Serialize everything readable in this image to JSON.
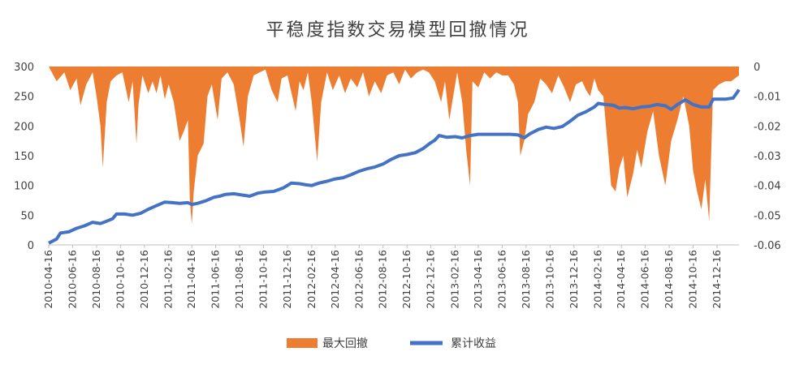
{
  "chart_data": {
    "type": "area+line",
    "title": "平稳度指数交易模型回撤情况",
    "x_ticks": [
      "2010-04-16",
      "2010-06-16",
      "2010-08-16",
      "2010-10-16",
      "2010-12-16",
      "2011-02-16",
      "2011-04-16",
      "2011-06-16",
      "2011-08-16",
      "2011-10-16",
      "2011-12-16",
      "2012-02-16",
      "2012-04-16",
      "2012-06-16",
      "2012-08-16",
      "2012-10-16",
      "2012-12-16",
      "2013-02-16",
      "2013-04-16",
      "2013-06-16",
      "2013-08-16",
      "2013-10-16",
      "2013-12-16",
      "2014-02-16",
      "2014-04-16",
      "2014-06-16",
      "2014-08-16",
      "2014-10-16",
      "2014-12-16"
    ],
    "x_range": [
      "2010-04-16",
      "2015-02-10"
    ],
    "y_left": {
      "min": 0,
      "max": 300,
      "step": 50,
      "ticks": [
        "0",
        "50",
        "100",
        "150",
        "200",
        "250",
        "300"
      ]
    },
    "y_right": {
      "min": -0.06,
      "max": 0,
      "step": 0.01,
      "ticks": [
        "-0.06",
        "-0.05",
        "-0.04",
        "-0.03",
        "-0.02",
        "-0.01",
        "0"
      ]
    },
    "grid": false,
    "legend_position": "bottom",
    "series": [
      {
        "name": "最大回撤",
        "axis": "right",
        "kind": "area",
        "color": "#ED7D31",
        "points": [
          [
            "2010-04-16",
            0
          ],
          [
            "2010-05-06",
            -0.005
          ],
          [
            "2010-05-26",
            -0.002
          ],
          [
            "2010-06-10",
            -0.008
          ],
          [
            "2010-06-26",
            -0.004
          ],
          [
            "2010-07-06",
            -0.013
          ],
          [
            "2010-07-21",
            -0.006
          ],
          [
            "2010-08-06",
            -0.002
          ],
          [
            "2010-08-16",
            -0.01
          ],
          [
            "2010-08-26",
            -0.02
          ],
          [
            "2010-09-01",
            -0.034
          ],
          [
            "2010-09-11",
            -0.012
          ],
          [
            "2010-09-21",
            -0.005
          ],
          [
            "2010-10-06",
            -0.003
          ],
          [
            "2010-10-21",
            -0.002
          ],
          [
            "2010-11-06",
            -0.012
          ],
          [
            "2010-11-16",
            -0.005
          ],
          [
            "2010-11-26",
            -0.026
          ],
          [
            "2010-12-01",
            -0.013
          ],
          [
            "2010-12-11",
            -0.003
          ],
          [
            "2010-12-26",
            -0.009
          ],
          [
            "2011-01-06",
            -0.005
          ],
          [
            "2011-01-16",
            -0.009
          ],
          [
            "2011-01-26",
            -0.003
          ],
          [
            "2011-02-06",
            -0.011
          ],
          [
            "2011-02-16",
            -0.006
          ],
          [
            "2011-03-01",
            -0.012
          ],
          [
            "2011-03-16",
            -0.025
          ],
          [
            "2011-03-26",
            -0.022
          ],
          [
            "2011-04-06",
            -0.018
          ],
          [
            "2011-04-11",
            -0.045
          ],
          [
            "2011-04-16",
            -0.053
          ],
          [
            "2011-04-21",
            -0.042
          ],
          [
            "2011-05-01",
            -0.03
          ],
          [
            "2011-05-16",
            -0.026
          ],
          [
            "2011-05-26",
            -0.01
          ],
          [
            "2011-06-06",
            -0.006
          ],
          [
            "2011-06-21",
            -0.018
          ],
          [
            "2011-07-01",
            -0.004
          ],
          [
            "2011-07-16",
            -0.002
          ],
          [
            "2011-08-01",
            -0.006
          ],
          [
            "2011-08-16",
            -0.018
          ],
          [
            "2011-08-26",
            -0.027
          ],
          [
            "2011-09-06",
            -0.01
          ],
          [
            "2011-09-21",
            -0.003
          ],
          [
            "2011-10-06",
            -0.002
          ],
          [
            "2011-10-21",
            -0.001
          ],
          [
            "2011-11-06",
            -0.008
          ],
          [
            "2011-11-21",
            -0.012
          ],
          [
            "2011-12-01",
            -0.004
          ],
          [
            "2011-12-16",
            -0.003
          ],
          [
            "2012-01-06",
            -0.015
          ],
          [
            "2012-01-16",
            -0.005
          ],
          [
            "2012-01-26",
            -0.008
          ],
          [
            "2012-02-06",
            -0.002
          ],
          [
            "2012-02-16",
            -0.012
          ],
          [
            "2012-03-01",
            -0.032
          ],
          [
            "2012-03-11",
            -0.012
          ],
          [
            "2012-03-26",
            -0.002
          ],
          [
            "2012-04-10",
            -0.008
          ],
          [
            "2012-04-26",
            -0.003
          ],
          [
            "2012-05-11",
            -0.009
          ],
          [
            "2012-05-26",
            -0.004
          ],
          [
            "2012-06-11",
            -0.007
          ],
          [
            "2012-06-26",
            -0.002
          ],
          [
            "2012-07-11",
            -0.01
          ],
          [
            "2012-07-26",
            -0.005
          ],
          [
            "2012-08-11",
            -0.009
          ],
          [
            "2012-08-26",
            -0.003
          ],
          [
            "2012-09-11",
            -0.002
          ],
          [
            "2012-09-26",
            -0.006
          ],
          [
            "2012-10-11",
            -0.001
          ],
          [
            "2012-10-26",
            -0.004
          ],
          [
            "2012-11-11",
            -0.002
          ],
          [
            "2012-11-26",
            -0.001
          ],
          [
            "2012-12-11",
            -0.002
          ],
          [
            "2012-12-26",
            -0.005
          ],
          [
            "2013-01-11",
            -0.012
          ],
          [
            "2013-01-21",
            -0.005
          ],
          [
            "2013-02-01",
            -0.018
          ],
          [
            "2013-02-11",
            -0.01
          ],
          [
            "2013-02-21",
            -0.002
          ],
          [
            "2013-03-06",
            -0.012
          ],
          [
            "2013-03-16",
            -0.028
          ],
          [
            "2013-03-26",
            -0.04
          ],
          [
            "2013-04-01",
            -0.005
          ],
          [
            "2013-04-16",
            -0.007
          ],
          [
            "2013-05-01",
            -0.002
          ],
          [
            "2013-05-16",
            -0.004
          ],
          [
            "2013-06-01",
            -0.002
          ],
          [
            "2013-06-16",
            -0.003
          ],
          [
            "2013-07-01",
            -0.003
          ],
          [
            "2013-07-16",
            -0.006
          ],
          [
            "2013-07-26",
            -0.012
          ],
          [
            "2013-08-01",
            -0.03
          ],
          [
            "2013-08-11",
            -0.025
          ],
          [
            "2013-08-21",
            -0.016
          ],
          [
            "2013-09-06",
            -0.012
          ],
          [
            "2013-09-21",
            -0.004
          ],
          [
            "2013-10-06",
            -0.006
          ],
          [
            "2013-10-21",
            -0.009
          ],
          [
            "2013-11-06",
            -0.003
          ],
          [
            "2013-11-21",
            -0.007
          ],
          [
            "2013-12-06",
            -0.012
          ],
          [
            "2013-12-21",
            -0.006
          ],
          [
            "2014-01-06",
            -0.005
          ],
          [
            "2014-01-16",
            -0.008
          ],
          [
            "2014-01-26",
            -0.01
          ],
          [
            "2014-02-06",
            -0.004
          ],
          [
            "2014-02-16",
            -0.008
          ],
          [
            "2014-03-01",
            -0.01
          ],
          [
            "2014-03-11",
            -0.025
          ],
          [
            "2014-03-21",
            -0.04
          ],
          [
            "2014-04-01",
            -0.042
          ],
          [
            "2014-04-11",
            -0.034
          ],
          [
            "2014-04-21",
            -0.03
          ],
          [
            "2014-05-01",
            -0.044
          ],
          [
            "2014-05-16",
            -0.036
          ],
          [
            "2014-05-26",
            -0.028
          ],
          [
            "2014-06-06",
            -0.034
          ],
          [
            "2014-06-21",
            -0.022
          ],
          [
            "2014-07-06",
            -0.015
          ],
          [
            "2014-07-21",
            -0.03
          ],
          [
            "2014-08-06",
            -0.04
          ],
          [
            "2014-08-21",
            -0.025
          ],
          [
            "2014-09-06",
            -0.018
          ],
          [
            "2014-09-21",
            -0.01
          ],
          [
            "2014-10-06",
            -0.02
          ],
          [
            "2014-10-16",
            -0.035
          ],
          [
            "2014-10-26",
            -0.042
          ],
          [
            "2014-11-06",
            -0.048
          ],
          [
            "2014-11-16",
            -0.038
          ],
          [
            "2014-11-26",
            -0.052
          ],
          [
            "2014-12-06",
            -0.008
          ],
          [
            "2014-12-21",
            -0.006
          ],
          [
            "2015-01-06",
            -0.005
          ],
          [
            "2015-01-21",
            -0.005
          ],
          [
            "2015-02-10",
            -0.003
          ]
        ]
      },
      {
        "name": "累计收益",
        "axis": "left",
        "kind": "line",
        "color": "#4472C4",
        "points": [
          [
            "2010-04-16",
            3
          ],
          [
            "2010-05-06",
            10
          ],
          [
            "2010-05-16",
            20
          ],
          [
            "2010-06-06",
            22
          ],
          [
            "2010-06-26",
            28
          ],
          [
            "2010-07-16",
            32
          ],
          [
            "2010-08-06",
            38
          ],
          [
            "2010-08-26",
            36
          ],
          [
            "2010-09-11",
            40
          ],
          [
            "2010-09-26",
            44
          ],
          [
            "2010-10-06",
            52
          ],
          [
            "2010-10-26",
            52
          ],
          [
            "2010-11-16",
            50
          ],
          [
            "2010-12-06",
            53
          ],
          [
            "2010-12-26",
            60
          ],
          [
            "2011-01-16",
            66
          ],
          [
            "2011-02-06",
            72
          ],
          [
            "2011-02-26",
            71
          ],
          [
            "2011-03-16",
            70
          ],
          [
            "2011-04-06",
            71
          ],
          [
            "2011-04-16",
            68
          ],
          [
            "2011-05-01",
            70
          ],
          [
            "2011-05-21",
            74
          ],
          [
            "2011-06-11",
            80
          ],
          [
            "2011-06-26",
            82
          ],
          [
            "2011-07-11",
            85
          ],
          [
            "2011-08-01",
            86
          ],
          [
            "2011-08-21",
            84
          ],
          [
            "2011-09-11",
            82
          ],
          [
            "2011-10-01",
            87
          ],
          [
            "2011-10-21",
            89
          ],
          [
            "2011-11-11",
            90
          ],
          [
            "2011-12-06",
            96
          ],
          [
            "2011-12-26",
            104
          ],
          [
            "2012-01-16",
            103
          ],
          [
            "2012-02-01",
            101
          ],
          [
            "2012-02-16",
            100
          ],
          [
            "2012-03-06",
            104
          ],
          [
            "2012-03-26",
            107
          ],
          [
            "2012-04-16",
            111
          ],
          [
            "2012-05-06",
            113
          ],
          [
            "2012-05-26",
            118
          ],
          [
            "2012-06-16",
            124
          ],
          [
            "2012-07-06",
            128
          ],
          [
            "2012-07-26",
            131
          ],
          [
            "2012-08-16",
            136
          ],
          [
            "2012-09-06",
            144
          ],
          [
            "2012-09-26",
            150
          ],
          [
            "2012-10-16",
            152
          ],
          [
            "2012-11-06",
            155
          ],
          [
            "2012-11-26",
            162
          ],
          [
            "2012-12-16",
            172
          ],
          [
            "2012-12-26",
            176
          ],
          [
            "2013-01-06",
            184
          ],
          [
            "2013-01-26",
            181
          ],
          [
            "2013-02-16",
            182
          ],
          [
            "2013-03-06",
            180
          ],
          [
            "2013-03-26",
            184
          ],
          [
            "2013-04-16",
            186
          ],
          [
            "2013-05-16",
            186
          ],
          [
            "2013-06-16",
            186
          ],
          [
            "2013-07-06",
            186
          ],
          [
            "2013-07-26",
            185
          ],
          [
            "2013-08-11",
            180
          ],
          [
            "2013-08-26",
            187
          ],
          [
            "2013-09-16",
            194
          ],
          [
            "2013-10-06",
            198
          ],
          [
            "2013-10-26",
            196
          ],
          [
            "2013-11-16",
            199
          ],
          [
            "2013-12-06",
            208
          ],
          [
            "2013-12-26",
            218
          ],
          [
            "2014-01-16",
            224
          ],
          [
            "2014-02-06",
            232
          ],
          [
            "2014-02-16",
            238
          ],
          [
            "2014-03-06",
            236
          ],
          [
            "2014-03-26",
            235
          ],
          [
            "2014-04-11",
            230
          ],
          [
            "2014-04-26",
            231
          ],
          [
            "2014-05-16",
            229
          ],
          [
            "2014-06-06",
            232
          ],
          [
            "2014-06-26",
            233
          ],
          [
            "2014-07-16",
            236
          ],
          [
            "2014-08-06",
            234
          ],
          [
            "2014-08-21",
            228
          ],
          [
            "2014-09-06",
            236
          ],
          [
            "2014-09-26",
            244
          ],
          [
            "2014-10-16",
            236
          ],
          [
            "2014-11-06",
            232
          ],
          [
            "2014-11-26",
            232
          ],
          [
            "2014-12-06",
            245
          ],
          [
            "2015-01-06",
            245
          ],
          [
            "2015-01-26",
            247
          ],
          [
            "2015-02-06",
            257
          ],
          [
            "2015-02-10",
            261
          ]
        ]
      }
    ]
  }
}
